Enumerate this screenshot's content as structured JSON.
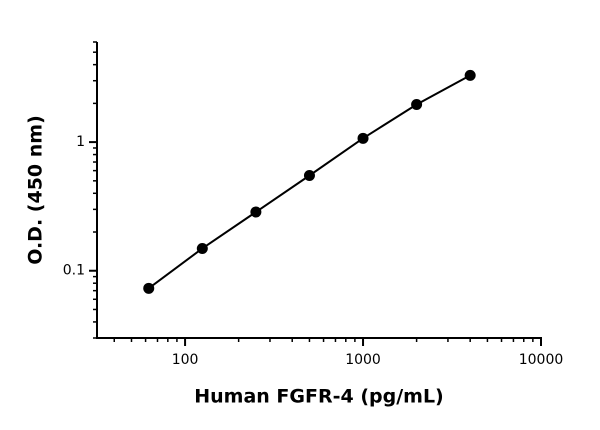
{
  "chart_data": {
    "type": "scatter",
    "x_label": "Human FGFR-4 (pg/mL)",
    "y_label": "O.D. (450 nm)",
    "x_scale": "log",
    "y_scale": "log",
    "xlim": [
      32,
      10000
    ],
    "ylim": [
      0.03,
      6
    ],
    "xticks": [
      100,
      1000,
      10000
    ],
    "yticks": [
      0.1,
      1
    ],
    "connect": true,
    "marker_color": "#000000",
    "x": [
      62.5,
      125,
      250,
      500,
      1000,
      2000,
      4000
    ],
    "values": [
      0.073,
      0.149,
      0.286,
      0.55,
      1.07,
      1.96,
      3.3
    ]
  }
}
